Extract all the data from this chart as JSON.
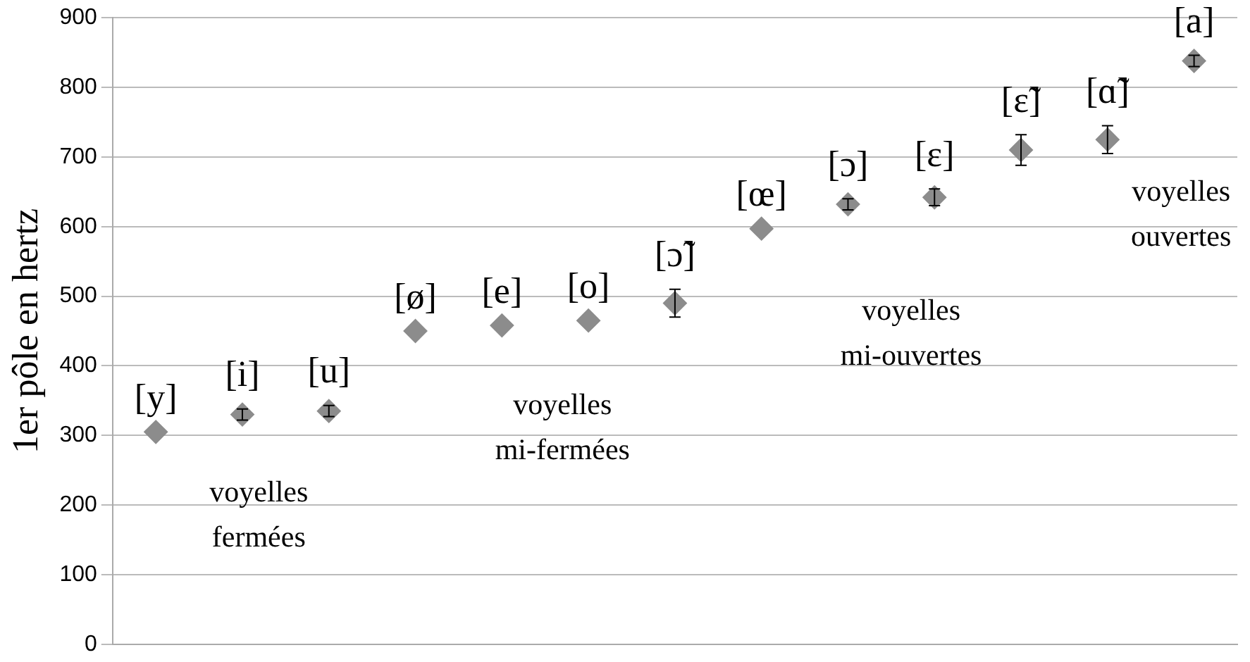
{
  "chart_data": {
    "type": "scatter",
    "ylabel": "1er pôle en hertz",
    "categories": [
      "[y]",
      "[i]",
      "[u]",
      "[ø]",
      "[e]",
      "[o]",
      "[ɔ̃]",
      "[œ]",
      "[ɔ]",
      "[ɛ]",
      "[ɛ̃]",
      "[ɑ̃]",
      "[a]"
    ],
    "values": [
      305,
      330,
      335,
      450,
      458,
      465,
      490,
      597,
      632,
      642,
      710,
      725,
      838
    ],
    "errors": [
      null,
      8,
      8,
      null,
      null,
      null,
      20,
      null,
      8,
      12,
      22,
      20,
      8
    ],
    "color": "#8c8c8c",
    "marker": "diamond",
    "ylim": [
      0,
      900
    ],
    "yticks": [
      0,
      100,
      200,
      300,
      400,
      500,
      600,
      700,
      800,
      900
    ],
    "grid": "y",
    "legend": false,
    "annotations": [
      "voyelles\nfermées",
      "voyelles\nmi-fermées",
      "voyelles\nmi-ouvertes",
      "voyelles\nouvertes"
    ]
  }
}
